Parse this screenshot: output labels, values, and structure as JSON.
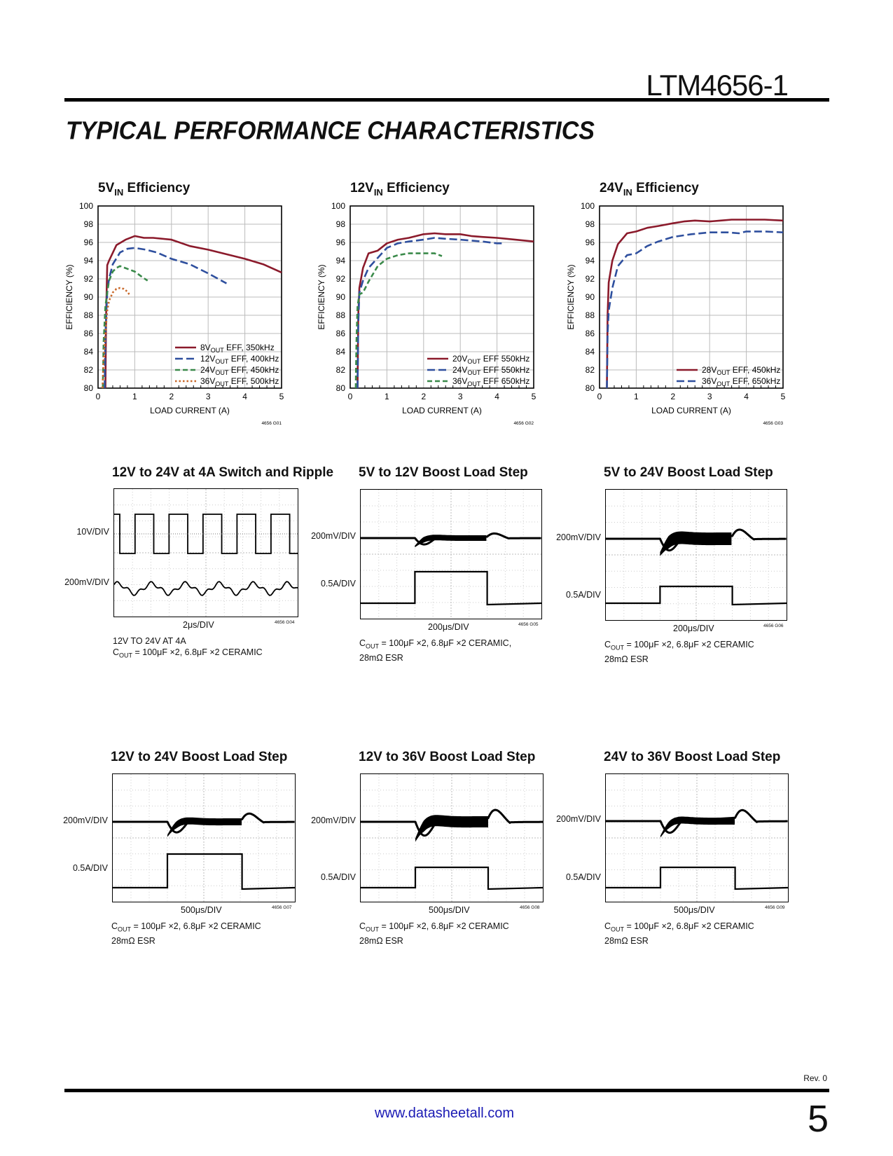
{
  "header": {
    "part_number": "LTM4656-1",
    "section_title": "TYPICAL PERFORMANCE CHARACTERISTICS"
  },
  "footer": {
    "revision": "Rev. 0",
    "url": "www.datasheetall.com",
    "page_number": "5"
  },
  "colors": {
    "series1": "#8b1a2b",
    "series2": "#2e4f9e",
    "series3": "#3a8a4a",
    "series4": "#c9692a",
    "link": "#1a1ab4"
  },
  "efficiency_charts": [
    {
      "title_main": "5V",
      "title_sub": "IN",
      "title_rest": " Efficiency",
      "xlabel": "LOAD CURRENT (A)",
      "ylabel": "EFFICIENCY (%)",
      "code": "4656 G01",
      "legend": [
        {
          "pre": "8V",
          "sub": "OUT",
          "post": " EFF, 350kHz"
        },
        {
          "pre": "12V",
          "sub": "OUT",
          "post": " EFF, 400kHz"
        },
        {
          "pre": "24V",
          "sub": "OUT",
          "post": " EFF, 450kHz"
        },
        {
          "pre": "36V",
          "sub": "OUT",
          "post": " EFF, 500kHz"
        }
      ]
    },
    {
      "title_main": "12V",
      "title_sub": "IN",
      "title_rest": " Efficiency",
      "xlabel": "LOAD CURRENT (A)",
      "ylabel": "EFFICIENCY (%)",
      "code": "4656 G02",
      "legend": [
        {
          "pre": "20V",
          "sub": "OUT",
          "post": " EFF 550kHz"
        },
        {
          "pre": "24V",
          "sub": "OUT",
          "post": " EFF 550kHz"
        },
        {
          "pre": "36V",
          "sub": "OUT",
          "post": " EFF 650kHz"
        }
      ]
    },
    {
      "title_main": "24V",
      "title_sub": "IN",
      "title_rest": " Efficiency",
      "xlabel": "LOAD CURRENT (A)",
      "ylabel": "EFFICIENCY (%)",
      "code": "4656 G03",
      "legend": [
        {
          "pre": "28V",
          "sub": "OUT",
          "post": " EFF, 450kHz"
        },
        {
          "pre": "36V",
          "sub": "OUT",
          "post": " EFF, 650kHz"
        }
      ]
    }
  ],
  "chart_data": [
    {
      "type": "line",
      "title": "5VIN Efficiency",
      "xlabel": "LOAD CURRENT (A)",
      "ylabel": "EFFICIENCY (%)",
      "xlim": [
        0,
        5
      ],
      "ylim": [
        80,
        100
      ],
      "x_ticks": [
        0,
        1,
        2,
        3,
        4,
        5
      ],
      "y_ticks": [
        80,
        82,
        84,
        86,
        88,
        90,
        92,
        94,
        96,
        98,
        100
      ],
      "grid": true,
      "legend_position": "bottom-right",
      "series": [
        {
          "name": "8VOUT EFF, 350kHz",
          "color": "#8b1a2b",
          "dash": "solid",
          "x": [
            0.2,
            0.22,
            0.25,
            0.3,
            0.5,
            0.75,
            1,
            1.25,
            1.5,
            2,
            2.5,
            3,
            3.5,
            4,
            4.5,
            5
          ],
          "y": [
            80,
            88,
            93.5,
            94,
            95.7,
            96.3,
            96.7,
            96.5,
            96.5,
            96.3,
            95.6,
            95.2,
            94.7,
            94.2,
            93.6,
            92.7
          ]
        },
        {
          "name": "12VOUT EFF, 400kHz",
          "color": "#2e4f9e",
          "dash": "long",
          "x": [
            0.18,
            0.2,
            0.25,
            0.3,
            0.4,
            0.6,
            0.8,
            1,
            1.3,
            1.6,
            2,
            2.5,
            3,
            3.5
          ],
          "y": [
            80,
            86,
            90.5,
            92,
            93.6,
            94.9,
            95.3,
            95.4,
            95.2,
            94.9,
            94.2,
            93.6,
            92.6,
            91.5
          ]
        },
        {
          "name": "24VOUT EFF, 450kHz",
          "color": "#3a8a4a",
          "dash": "dash",
          "x": [
            0.13,
            0.15,
            0.2,
            0.25,
            0.3,
            0.4,
            0.5,
            0.6,
            0.8,
            1,
            1.2,
            1.35
          ],
          "y": [
            80,
            85,
            89,
            90.5,
            91.8,
            92.8,
            93.2,
            93.4,
            93.1,
            92.8,
            92.2,
            91.8
          ]
        },
        {
          "name": "36VOUT EFF, 500kHz",
          "color": "#c9692a",
          "dash": "dot",
          "x": [
            0.12,
            0.15,
            0.2,
            0.25,
            0.3,
            0.4,
            0.5,
            0.6,
            0.7,
            0.8,
            0.85
          ],
          "y": [
            80,
            83,
            86,
            88.5,
            89.6,
            90.5,
            90.9,
            91,
            90.9,
            90.6,
            90.3
          ]
        }
      ]
    },
    {
      "type": "line",
      "title": "12VIN Efficiency",
      "xlabel": "LOAD CURRENT (A)",
      "ylabel": "EFFICIENCY (%)",
      "xlim": [
        0,
        5
      ],
      "ylim": [
        80,
        100
      ],
      "x_ticks": [
        0,
        1,
        2,
        3,
        4,
        5
      ],
      "y_ticks": [
        80,
        82,
        84,
        86,
        88,
        90,
        92,
        94,
        96,
        98,
        100
      ],
      "grid": true,
      "legend_position": "bottom-right",
      "series": [
        {
          "name": "20VOUT EFF 550kHz",
          "color": "#8b1a2b",
          "dash": "solid",
          "x": [
            0.2,
            0.22,
            0.25,
            0.35,
            0.5,
            0.75,
            1,
            1.3,
            1.6,
            2,
            2.3,
            2.6,
            3,
            3.3,
            3.6,
            4,
            4.5,
            5
          ],
          "y": [
            80,
            88,
            91,
            93.2,
            94.8,
            95.1,
            95.9,
            96.3,
            96.5,
            96.9,
            97,
            96.9,
            96.9,
            96.7,
            96.6,
            96.5,
            96.3,
            96.1
          ]
        },
        {
          "name": "24VOUT EFF 550kHz",
          "color": "#2e4f9e",
          "dash": "long",
          "x": [
            0.2,
            0.22,
            0.25,
            0.35,
            0.5,
            0.75,
            1,
            1.3,
            1.6,
            2,
            2.3,
            2.6,
            3,
            3.3,
            3.6,
            4,
            4.2
          ],
          "y": [
            80,
            87,
            90.5,
            91.8,
            93.2,
            94.3,
            95.4,
            95.9,
            96.1,
            96.3,
            96.5,
            96.4,
            96.3,
            96.2,
            96.1,
            95.9,
            95.9
          ]
        },
        {
          "name": "36VOUT EFF 650kHz",
          "color": "#3a8a4a",
          "dash": "dash",
          "x": [
            0.15,
            0.17,
            0.2,
            0.25,
            0.35,
            0.5,
            0.75,
            1,
            1.3,
            1.6,
            2,
            2.3,
            2.5
          ],
          "y": [
            80,
            85,
            89,
            90.3,
            90.5,
            91.7,
            93.4,
            94.2,
            94.6,
            94.8,
            94.8,
            94.8,
            94.5
          ]
        }
      ]
    },
    {
      "type": "line",
      "title": "24VIN Efficiency",
      "xlabel": "LOAD CURRENT (A)",
      "ylabel": "EFFICIENCY (%)",
      "xlim": [
        0,
        5
      ],
      "ylim": [
        80,
        100
      ],
      "x_ticks": [
        0,
        1,
        2,
        3,
        4,
        5
      ],
      "y_ticks": [
        80,
        82,
        84,
        86,
        88,
        90,
        92,
        94,
        96,
        98,
        100
      ],
      "grid": true,
      "legend_position": "bottom-right",
      "series": [
        {
          "name": "28VOUT EFF, 450kHz",
          "color": "#8b1a2b",
          "dash": "solid",
          "x": [
            0.2,
            0.22,
            0.25,
            0.35,
            0.5,
            0.75,
            1,
            1.3,
            1.6,
            2,
            2.3,
            2.6,
            3,
            3.3,
            3.6,
            4,
            4.5,
            5
          ],
          "y": [
            80,
            88,
            91.6,
            94,
            95.8,
            97,
            97.2,
            97.6,
            97.8,
            98.1,
            98.3,
            98.4,
            98.3,
            98.4,
            98.5,
            98.5,
            98.5,
            98.4
          ]
        },
        {
          "name": "36VOUT EFF, 650kHz",
          "color": "#2e4f9e",
          "dash": "long",
          "x": [
            0.2,
            0.22,
            0.25,
            0.35,
            0.5,
            0.75,
            1,
            1.3,
            1.6,
            2,
            2.5,
            3,
            3.5,
            3.8,
            4,
            4.5,
            5
          ],
          "y": [
            80,
            86,
            88.5,
            91,
            93.4,
            94.6,
            94.8,
            95.6,
            96.1,
            96.6,
            96.9,
            97.1,
            97.1,
            97,
            97.2,
            97.2,
            97.1
          ]
        }
      ]
    }
  ],
  "scopes": [
    {
      "title": "12V to 24V at 4A Switch and Ripple",
      "div1": "10V/DIV",
      "div2": "200mV/DIV",
      "timebase": "2μs/DIV",
      "code": "4656 G04",
      "caption_line1": "12V TO 24V AT 4A",
      "caption_line2_pre": "C",
      "caption_line2_sub": "OUT",
      "caption_line2_post": " = 100μF ×2, 6.8μF ×2 CERAMIC",
      "caption_line3": ""
    },
    {
      "title": "5V to 12V Boost Load Step",
      "div1": "200mV/DIV",
      "div2": "0.5A/DIV",
      "timebase": "200μs/DIV",
      "code": "4656 G05",
      "caption_line1": "",
      "caption_line2_pre": "C",
      "caption_line2_sub": "OUT",
      "caption_line2_post": " = 100μF ×2, 6.8μF ×2 CERAMIC,",
      "caption_line3": "28mΩ ESR"
    },
    {
      "title": "5V to 24V Boost Load Step",
      "div1": "200mV/DIV",
      "div2": "0.5A/DIV",
      "timebase": "200μs/DIV",
      "code": "4656 G06",
      "caption_line1": "",
      "caption_line2_pre": "C",
      "caption_line2_sub": "OUT",
      "caption_line2_post": " = 100μF ×2, 6.8μF ×2 CERAMIC",
      "caption_line3": "28mΩ ESR"
    },
    {
      "title": "12V to 24V Boost Load Step",
      "div1": "200mV/DIV",
      "div2": "0.5A/DIV",
      "timebase": "500μs/DIV",
      "code": "4656 G07",
      "caption_line1": "",
      "caption_line2_pre": "C",
      "caption_line2_sub": "OUT",
      "caption_line2_post": " = 100μF ×2, 6.8μF ×2 CERAMIC",
      "caption_line3": "28mΩ ESR"
    },
    {
      "title": "12V to 36V Boost Load Step",
      "div1": "200mV/DIV",
      "div2": "0.5A/DIV",
      "timebase": "500μs/DIV",
      "code": "4656 G08",
      "caption_line1": "",
      "caption_line2_pre": "C",
      "caption_line2_sub": "OUT",
      "caption_line2_post": " = 100μF ×2, 6.8μF ×2 CERAMIC",
      "caption_line3": "28mΩ ESR"
    },
    {
      "title": "24V to 36V Boost Load Step",
      "div1": "200mV/DIV",
      "div2": "0.5A/DIV",
      "timebase": "500μs/DIV",
      "code": "4656 G09",
      "caption_line1": "",
      "caption_line2_pre": "C",
      "caption_line2_sub": "OUT",
      "caption_line2_post": " = 100μF ×2, 6.8μF ×2 CERAMIC",
      "caption_line3": "28mΩ ESR"
    }
  ]
}
